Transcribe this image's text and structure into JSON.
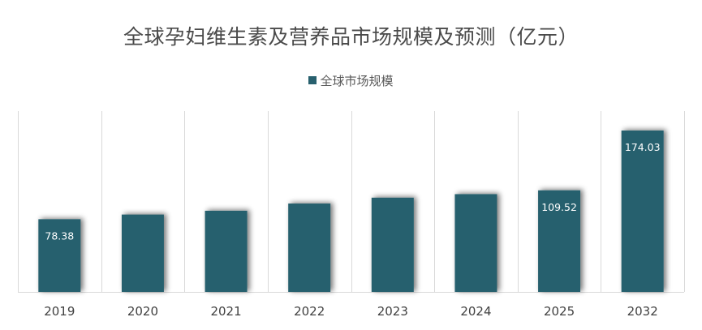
{
  "chart_data": {
    "type": "bar",
    "title": "全球孕妇维生素及营养品市场规模及预测（亿元）",
    "categories": [
      "2019",
      "2020",
      "2021",
      "2022",
      "2023",
      "2024",
      "2025",
      "2032"
    ],
    "series": [
      {
        "name": "全球市场规模",
        "values": [
          78.38,
          83.4,
          87.5,
          95.3,
          101.6,
          105.4,
          109.52,
          174.03
        ],
        "color": "#28606e"
      }
    ],
    "data_labels": [
      "78.38",
      null,
      null,
      null,
      null,
      null,
      "109.52",
      "174.03"
    ],
    "ylim": [
      0,
      195
    ],
    "grid": "vertical",
    "legend_position": "top-center",
    "xlabel": "",
    "ylabel": ""
  }
}
